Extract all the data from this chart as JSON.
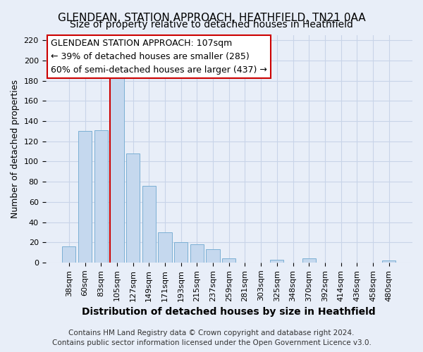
{
  "title": "GLENDEAN, STATION APPROACH, HEATHFIELD, TN21 0AA",
  "subtitle": "Size of property relative to detached houses in Heathfield",
  "xlabel": "Distribution of detached houses by size in Heathfield",
  "ylabel": "Number of detached properties",
  "bar_color": "#c5d8ee",
  "bar_edge_color": "#7bafd4",
  "categories": [
    "38sqm",
    "60sqm",
    "83sqm",
    "105sqm",
    "127sqm",
    "149sqm",
    "171sqm",
    "193sqm",
    "215sqm",
    "237sqm",
    "259sqm",
    "281sqm",
    "303sqm",
    "325sqm",
    "348sqm",
    "370sqm",
    "392sqm",
    "414sqm",
    "436sqm",
    "458sqm",
    "480sqm"
  ],
  "values": [
    16,
    130,
    131,
    184,
    108,
    76,
    30,
    20,
    18,
    13,
    4,
    0,
    0,
    3,
    0,
    4,
    0,
    0,
    0,
    0,
    2
  ],
  "ylim": [
    0,
    225
  ],
  "yticks": [
    0,
    20,
    40,
    60,
    80,
    100,
    120,
    140,
    160,
    180,
    200,
    220
  ],
  "annotation_box_title": "GLENDEAN STATION APPROACH: 107sqm",
  "annotation_line1": "← 39% of detached houses are smaller (285)",
  "annotation_line2": "60% of semi-detached houses are larger (437) →",
  "property_bar_index": 3,
  "property_bar_color": "#cc0000",
  "footer_line1": "Contains HM Land Registry data © Crown copyright and database right 2024.",
  "footer_line2": "Contains public sector information licensed under the Open Government Licence v3.0.",
  "background_color": "#e8eef8",
  "plot_bg_color": "#e8eef8",
  "grid_color": "#c8d4e8",
  "title_fontsize": 11,
  "subtitle_fontsize": 10,
  "xlabel_fontsize": 10,
  "ylabel_fontsize": 9,
  "tick_fontsize": 8,
  "annotation_fontsize": 9,
  "footer_fontsize": 7.5
}
